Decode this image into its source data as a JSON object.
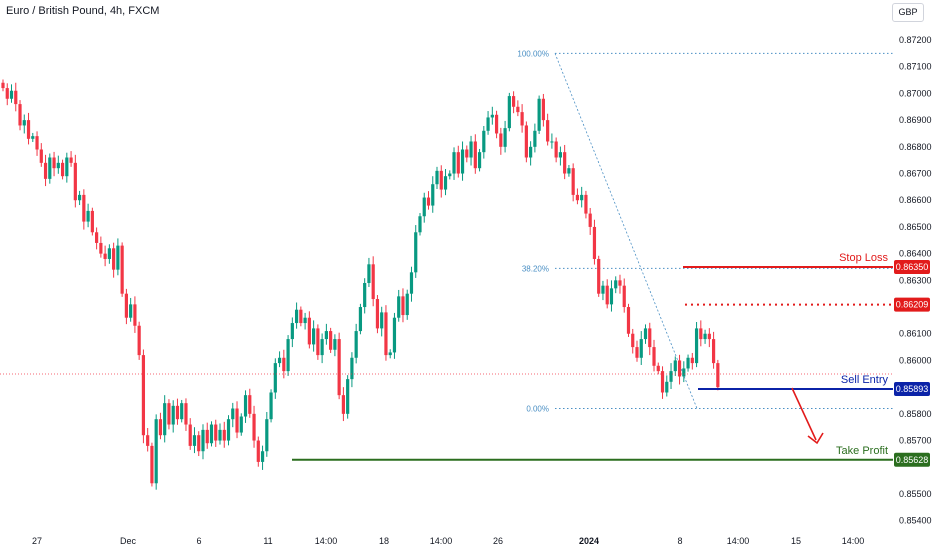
{
  "header": {
    "title": "Euro / British Pound, 4h, FXCM",
    "currency": "GBP"
  },
  "colors": {
    "up": "#089981",
    "down": "#f23645",
    "stop_loss": "#e21b1b",
    "sell_entry": "#0b23a8",
    "take_profit": "#2b6e1f",
    "fib": "#4a8fc4"
  },
  "chart_data": {
    "type": "candlestick",
    "title": "Euro / British Pound, 4h, FXCM",
    "ylim": [
      0.85365,
      0.87245
    ],
    "y_ticks": [
      "0.87200",
      "0.87100",
      "0.87000",
      "0.86900",
      "0.86800",
      "0.86700",
      "0.86600",
      "0.86500",
      "0.86400",
      "0.86300",
      "0.86100",
      "0.86000",
      "0.85800",
      "0.85700",
      "0.85500",
      "0.85400"
    ],
    "x_ticks": [
      "27",
      "Dec",
      "6",
      "11",
      "14:00",
      "18",
      "14:00",
      "26",
      "2024",
      "8",
      "14:00",
      "15",
      "14:00"
    ],
    "candles_close": [
      0.8702,
      0.8698,
      0.8701,
      0.8696,
      0.8688,
      0.869,
      0.8683,
      0.8684,
      0.8679,
      0.8674,
      0.8668,
      0.8676,
      0.8672,
      0.8674,
      0.8669,
      0.8676,
      0.8674,
      0.866,
      0.8662,
      0.8652,
      0.8656,
      0.8648,
      0.8644,
      0.864,
      0.8638,
      0.8642,
      0.8634,
      0.8643,
      0.8625,
      0.8616,
      0.8621,
      0.8613,
      0.8602,
      0.8572,
      0.8568,
      0.8554,
      0.8578,
      0.8572,
      0.8584,
      0.8576,
      0.8583,
      0.8578,
      0.8584,
      0.8576,
      0.8568,
      0.8572,
      0.8566,
      0.8574,
      0.8569,
      0.8576,
      0.857,
      0.8574,
      0.857,
      0.8578,
      0.8582,
      0.8573,
      0.8579,
      0.8587,
      0.858,
      0.857,
      0.8562,
      0.8566,
      0.8578,
      0.8588,
      0.8599,
      0.8601,
      0.8596,
      0.8608,
      0.8614,
      0.8619,
      0.8614,
      0.8616,
      0.8606,
      0.8612,
      0.8602,
      0.8608,
      0.8611,
      0.8604,
      0.8608,
      0.8587,
      0.858,
      0.8593,
      0.8601,
      0.8611,
      0.862,
      0.8629,
      0.8636,
      0.8623,
      0.8612,
      0.8618,
      0.8602,
      0.8603,
      0.8616,
      0.8624,
      0.8617,
      0.8625,
      0.8633,
      0.8648,
      0.8654,
      0.8661,
      0.8658,
      0.8666,
      0.8671,
      0.8664,
      0.8669,
      0.867,
      0.8678,
      0.867,
      0.8679,
      0.8676,
      0.8682,
      0.8672,
      0.8678,
      0.8686,
      0.8691,
      0.8692,
      0.8685,
      0.868,
      0.8687,
      0.8699,
      0.8695,
      0.8693,
      0.8688,
      0.8676,
      0.868,
      0.8686,
      0.8698,
      0.869,
      0.8682,
      0.8682,
      0.8676,
      0.8678,
      0.867,
      0.8672,
      0.8662,
      0.866,
      0.8662,
      0.8655,
      0.865,
      0.8638,
      0.8625,
      0.8628,
      0.8621,
      0.8627,
      0.863,
      0.8628,
      0.862,
      0.861,
      0.8605,
      0.8601,
      0.8608,
      0.8612,
      0.8605,
      0.8598,
      0.8596,
      0.8588,
      0.8592,
      0.8596,
      0.86,
      0.8594,
      0.8597,
      0.8601,
      0.8599,
      0.8612,
      0.8608,
      0.861,
      0.8608,
      0.8599,
      0.859
    ],
    "annotations": {
      "stop_loss": {
        "label": "Stop Loss",
        "price": "0.86350"
      },
      "resistance": {
        "price": "0.86209"
      },
      "sell_entry": {
        "label": "Sell Entry",
        "price": "0.85893"
      },
      "take_profit": {
        "label": "Take Profit",
        "price": "0.85628"
      },
      "fib_100": {
        "label": "100.00%",
        "price": 0.8715
      },
      "fib_38": {
        "label": "38.20%",
        "price": 0.86345
      },
      "fib_0": {
        "label": "0.00%",
        "price": 0.8582
      }
    }
  }
}
